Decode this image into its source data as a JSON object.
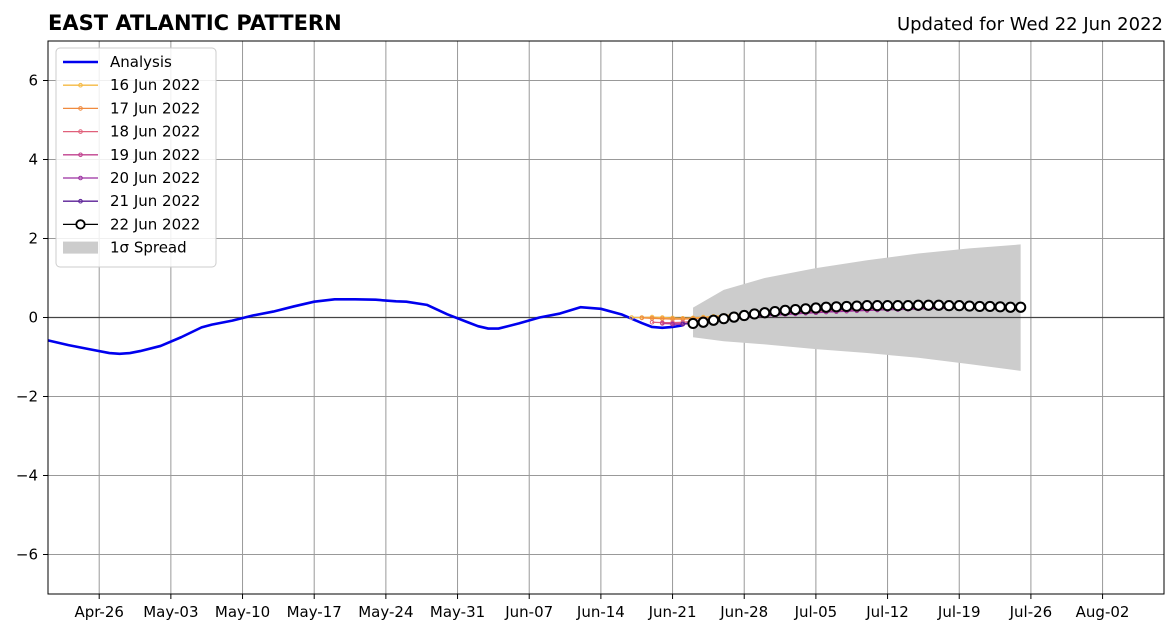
{
  "chart_data": {
    "type": "line",
    "title": "EAST ATLANTIC PATTERN",
    "subtitle": "Updated for Wed 22 Jun 2022",
    "xlabel": "",
    "ylabel": "",
    "x_axis": "date",
    "xlim": [
      "2022-04-21",
      "2022-08-08"
    ],
    "ylim": [
      -7,
      7
    ],
    "yticks": [
      -6,
      -4,
      -2,
      0,
      2,
      4,
      6
    ],
    "ytick_labels": [
      "−6",
      "−4",
      "−2",
      "0",
      "2",
      "4",
      "6"
    ],
    "xticks": [
      "2022-04-26",
      "2022-05-03",
      "2022-05-10",
      "2022-05-17",
      "2022-05-24",
      "2022-05-31",
      "2022-06-07",
      "2022-06-14",
      "2022-06-21",
      "2022-06-28",
      "2022-07-05",
      "2022-07-12",
      "2022-07-19",
      "2022-07-26",
      "2022-08-02"
    ],
    "xtick_labels": [
      "Apr-26",
      "May-03",
      "May-10",
      "May-17",
      "May-24",
      "May-31",
      "Jun-07",
      "Jun-14",
      "Jun-21",
      "Jun-28",
      "Jul-05",
      "Jul-12",
      "Jul-19",
      "Jul-26",
      "Aug-02"
    ],
    "grid": true,
    "legend_position": "top-left",
    "analysis": {
      "name": "Analysis",
      "color": "#0000ee",
      "x": [
        "2022-04-21",
        "2022-04-23",
        "2022-04-25",
        "2022-04-27",
        "2022-04-28",
        "2022-04-29",
        "2022-04-30",
        "2022-05-02",
        "2022-05-04",
        "2022-05-06",
        "2022-05-07",
        "2022-05-09",
        "2022-05-11",
        "2022-05-13",
        "2022-05-15",
        "2022-05-17",
        "2022-05-19",
        "2022-05-21",
        "2022-05-23",
        "2022-05-25",
        "2022-05-26",
        "2022-05-28",
        "2022-05-30",
        "2022-06-01",
        "2022-06-02",
        "2022-06-03",
        "2022-06-04",
        "2022-06-06",
        "2022-06-08",
        "2022-06-10",
        "2022-06-11",
        "2022-06-12",
        "2022-06-14",
        "2022-06-16",
        "2022-06-18",
        "2022-06-19",
        "2022-06-20",
        "2022-06-21",
        "2022-06-22"
      ],
      "values": [
        -0.58,
        -0.7,
        -0.8,
        -0.9,
        -0.92,
        -0.9,
        -0.85,
        -0.72,
        -0.5,
        -0.25,
        -0.18,
        -0.08,
        0.05,
        0.15,
        0.28,
        0.4,
        0.46,
        0.46,
        0.45,
        0.41,
        0.4,
        0.32,
        0.08,
        -0.12,
        -0.22,
        -0.28,
        -0.28,
        -0.15,
        0.0,
        0.1,
        0.18,
        0.26,
        0.22,
        0.08,
        -0.14,
        -0.24,
        -0.26,
        -0.24,
        -0.2
      ]
    },
    "forecasts": [
      {
        "name": "16 Jun 2022",
        "color": "#f5b942",
        "start": "2022-06-17",
        "step_days": 1,
        "values": [
          0.0,
          0.0,
          0.01,
          0.0,
          -0.01,
          -0.02,
          -0.01,
          0.01,
          0.03,
          0.05,
          0.07,
          0.09,
          0.1,
          0.11,
          0.12,
          0.13,
          0.14,
          0.15,
          0.16,
          0.17,
          0.18,
          0.19,
          0.2,
          0.21,
          0.22,
          0.23,
          0.24,
          0.25,
          0.25,
          0.26,
          0.26,
          0.27,
          0.27,
          0.28,
          0.28,
          0.28,
          0.28
        ]
      },
      {
        "name": "17 Jun 2022",
        "color": "#f08a3e",
        "start": "2022-06-18",
        "step_days": 1,
        "values": [
          -0.01,
          -0.02,
          -0.03,
          -0.04,
          -0.04,
          -0.03,
          -0.01,
          0.01,
          0.03,
          0.05,
          0.07,
          0.09,
          0.1,
          0.12,
          0.13,
          0.14,
          0.15,
          0.16,
          0.17,
          0.18,
          0.19,
          0.2,
          0.21,
          0.22,
          0.23,
          0.24,
          0.24,
          0.25,
          0.26,
          0.26,
          0.27,
          0.27,
          0.28,
          0.28,
          0.28,
          0.28
        ]
      },
      {
        "name": "18 Jun 2022",
        "color": "#e0607a",
        "start": "2022-06-19",
        "step_days": 1,
        "values": [
          -0.12,
          -0.13,
          -0.13,
          -0.12,
          -0.1,
          -0.08,
          -0.05,
          -0.02,
          0.0,
          0.03,
          0.05,
          0.07,
          0.09,
          0.1,
          0.12,
          0.13,
          0.14,
          0.15,
          0.16,
          0.17,
          0.18,
          0.19,
          0.2,
          0.21,
          0.22,
          0.23,
          0.23,
          0.24,
          0.25,
          0.25,
          0.26,
          0.26,
          0.27,
          0.27,
          0.27
        ]
      },
      {
        "name": "19 Jun 2022",
        "color": "#c0408e",
        "start": "2022-06-20",
        "step_days": 1,
        "values": [
          -0.15,
          -0.16,
          -0.16,
          -0.14,
          -0.12,
          -0.09,
          -0.06,
          -0.03,
          0.0,
          0.02,
          0.04,
          0.06,
          0.08,
          0.1,
          0.11,
          0.12,
          0.14,
          0.15,
          0.16,
          0.17,
          0.18,
          0.19,
          0.2,
          0.21,
          0.21,
          0.22,
          0.23,
          0.24,
          0.24,
          0.25,
          0.25,
          0.26,
          0.26,
          0.27
        ]
      },
      {
        "name": "20 Jun 2022",
        "color": "#9a2ea0",
        "start": "2022-06-21",
        "step_days": 1,
        "values": [
          -0.17,
          -0.17,
          -0.15,
          -0.12,
          -0.09,
          -0.06,
          -0.03,
          0.0,
          0.02,
          0.04,
          0.06,
          0.08,
          0.09,
          0.11,
          0.12,
          0.14,
          0.15,
          0.16,
          0.17,
          0.18,
          0.19,
          0.2,
          0.2,
          0.21,
          0.22,
          0.23,
          0.23,
          0.24,
          0.25,
          0.25,
          0.26,
          0.26,
          0.27
        ]
      },
      {
        "name": "21 Jun 2022",
        "color": "#5a1e96",
        "start": "2022-06-22",
        "step_days": 1,
        "values": [
          -0.16,
          -0.14,
          -0.1,
          -0.06,
          -0.02,
          0.01,
          0.04,
          0.07,
          0.09,
          0.11,
          0.13,
          0.15,
          0.16,
          0.18,
          0.19,
          0.2,
          0.21,
          0.22,
          0.23,
          0.24,
          0.25,
          0.25,
          0.26,
          0.27,
          0.27,
          0.28,
          0.28,
          0.28,
          0.28,
          0.27,
          0.27,
          0.26
        ]
      },
      {
        "name": "22 Jun 2022",
        "color": "#000000",
        "start": "2022-06-23",
        "step_days": 1,
        "values": [
          -0.15,
          -0.12,
          -0.07,
          -0.03,
          0.01,
          0.05,
          0.09,
          0.12,
          0.15,
          0.18,
          0.2,
          0.22,
          0.24,
          0.26,
          0.27,
          0.28,
          0.29,
          0.3,
          0.3,
          0.3,
          0.3,
          0.3,
          0.31,
          0.31,
          0.31,
          0.3,
          0.3,
          0.29,
          0.28,
          0.28,
          0.27,
          0.26,
          0.26
        ]
      }
    ],
    "spread": {
      "name": "1σ Spread",
      "color": "#cccccc",
      "x": [
        "2022-06-23",
        "2022-06-26",
        "2022-06-30",
        "2022-07-05",
        "2022-07-10",
        "2022-07-15",
        "2022-07-20",
        "2022-07-25"
      ],
      "upper": [
        0.25,
        0.7,
        1.0,
        1.25,
        1.45,
        1.62,
        1.75,
        1.85
      ],
      "lower": [
        -0.5,
        -0.6,
        -0.68,
        -0.8,
        -0.9,
        -1.02,
        -1.18,
        -1.35
      ]
    }
  }
}
